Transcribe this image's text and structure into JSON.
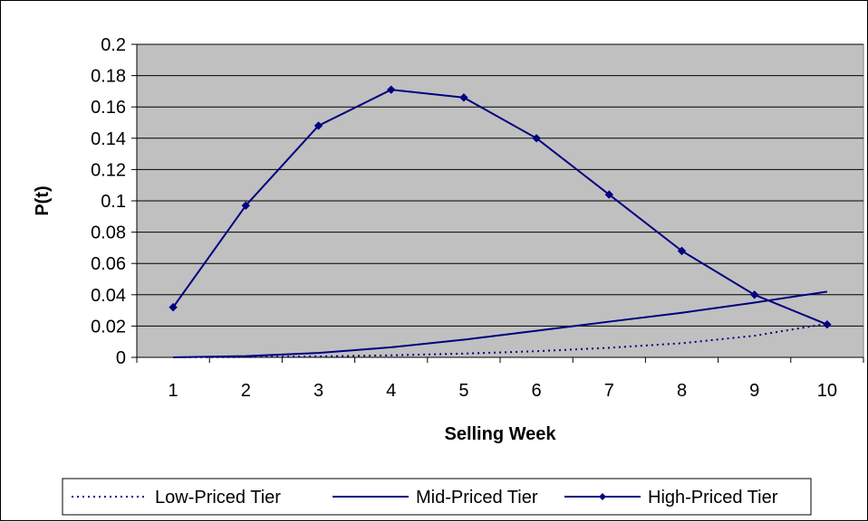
{
  "chart_data": {
    "type": "line",
    "title": "",
    "xlabel": "Selling Week",
    "ylabel": "P(t)",
    "categories": [
      "1",
      "2",
      "3",
      "4",
      "5",
      "6",
      "7",
      "8",
      "9",
      "10"
    ],
    "ylim": [
      0,
      0.2
    ],
    "yticks": [
      "0",
      "0.02",
      "0.04",
      "0.06",
      "0.08",
      "0.1",
      "0.12",
      "0.14",
      "0.16",
      "0.18",
      "0.2"
    ],
    "grid": true,
    "legend_position": "bottom",
    "series": [
      {
        "name": "Low-Priced Tier",
        "style": "dotted",
        "color": "#000080",
        "values": [
          0.0,
          0.0002,
          0.0006,
          0.0013,
          0.0024,
          0.0039,
          0.0061,
          0.009,
          0.0138,
          0.0215
        ]
      },
      {
        "name": "Mid-Priced Tier",
        "style": "solid",
        "color": "#000080",
        "values": [
          0.0,
          0.0008,
          0.0028,
          0.0064,
          0.0113,
          0.017,
          0.0228,
          0.0285,
          0.035,
          0.042
        ]
      },
      {
        "name": "High-Priced Tier",
        "style": "solid-diamond-markers",
        "color": "#000080",
        "values": [
          0.032,
          0.097,
          0.148,
          0.171,
          0.166,
          0.14,
          0.104,
          0.068,
          0.04,
          0.021
        ]
      }
    ],
    "plot_background": "#c0c0c0"
  }
}
